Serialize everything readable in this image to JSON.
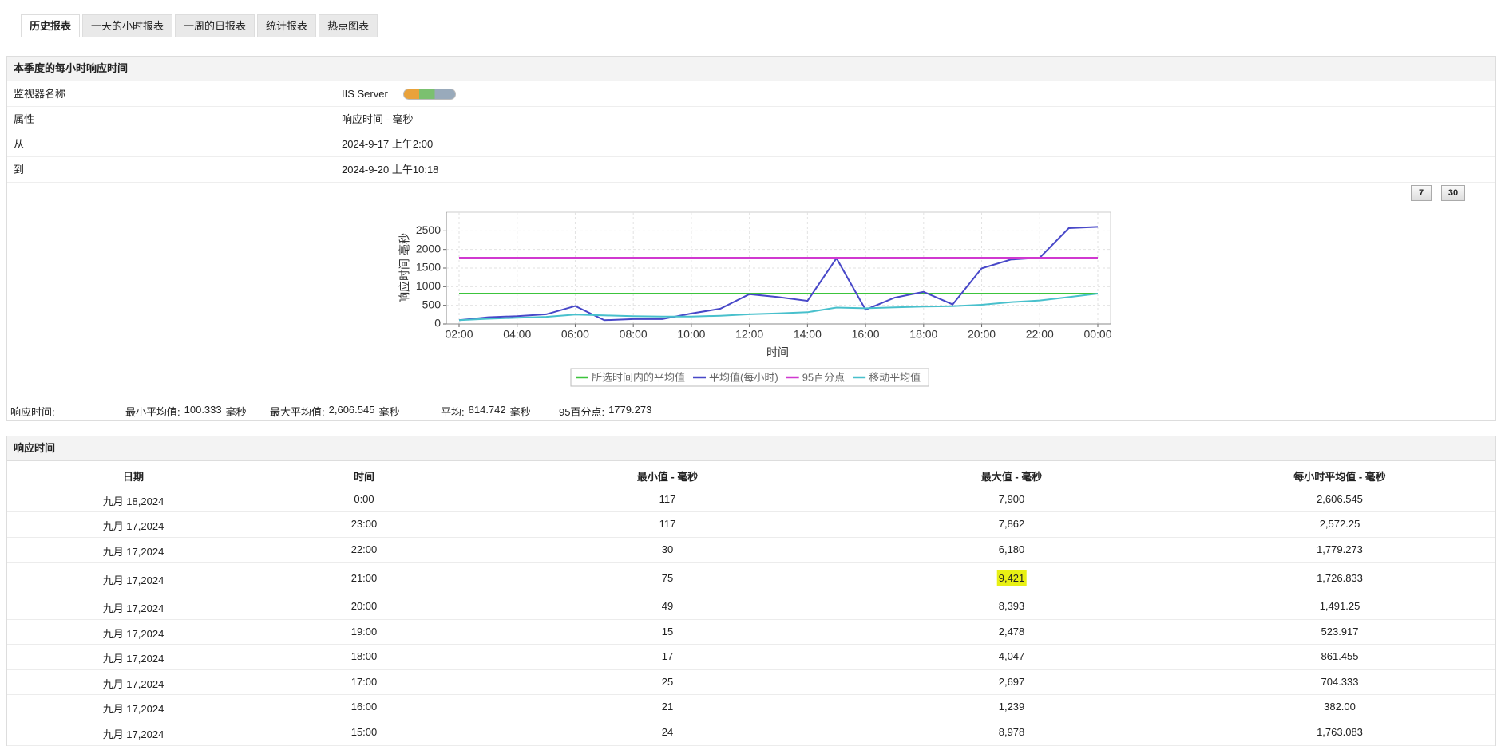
{
  "tabs": [
    "历史报表",
    "一天的小时报表",
    "一周的日报表",
    "统计报表",
    "热点图表"
  ],
  "summary": {
    "title": "本季度的每小时响应时间",
    "rows": [
      [
        "监视器名称",
        "IIS Server"
      ],
      [
        "属性",
        "响应时间 - 毫秒"
      ],
      [
        "从",
        "2024-9-17 上午2:00"
      ],
      [
        "到",
        "2024-9-20 上午10:18"
      ]
    ]
  },
  "period_buttons": [
    "7",
    "30"
  ],
  "chart_data": {
    "type": "line",
    "x_label": "时间",
    "y_label": "响应时间 毫秒",
    "categories": [
      "02:00",
      null,
      "04:00",
      null,
      "06:00",
      null,
      "08:00",
      null,
      "10:00",
      null,
      "12:00",
      null,
      "14:00",
      null,
      "16:00",
      null,
      "18:00",
      null,
      "20:00",
      null,
      "22:00",
      null,
      "00:00"
    ],
    "series": [
      {
        "name": "所选时间内的平均值",
        "color": "#3cc43c",
        "values": [
          814.742,
          814.742,
          814.742,
          814.742,
          814.742,
          814.742,
          814.742,
          814.742,
          814.742,
          814.742,
          814.742,
          814.742,
          814.742,
          814.742,
          814.742,
          814.742,
          814.742,
          814.742,
          814.742,
          814.742,
          814.742,
          814.742,
          814.742
        ]
      },
      {
        "name": "平均值(每小时)",
        "color": "#4848c8",
        "values": [
          100.333,
          180,
          210,
          260,
          480,
          100,
          130,
          130,
          280,
          410,
          800,
          720,
          620,
          1763.083,
          382,
          704.333,
          861.455,
          523.917,
          1491.25,
          1726.833,
          1779.273,
          2572.25,
          2606.545
        ]
      },
      {
        "name": "95百分点",
        "color": "#d038d0",
        "values": [
          1779.273,
          1779.273,
          1779.273,
          1779.273,
          1779.273,
          1779.273,
          1779.273,
          1779.273,
          1779.273,
          1779.273,
          1779.273,
          1779.273,
          1779.273,
          1779.273,
          1779.273,
          1779.273,
          1779.273,
          1779.273,
          1779.273,
          1779.273,
          1779.273,
          1779.273,
          1779.273
        ]
      },
      {
        "name": "移动平均值",
        "color": "#48c0cc",
        "values": [
          100,
          140,
          165,
          190,
          250,
          230,
          210,
          200,
          200,
          220,
          260,
          285,
          315,
          440,
          420,
          445,
          465,
          475,
          515,
          585,
          630,
          720,
          815
        ]
      }
    ],
    "ylim": [
      0,
      3000
    ],
    "yticks": [
      0,
      500,
      1000,
      1500,
      2000,
      2500
    ],
    "grid": true,
    "legend": "bottom"
  },
  "stats": {
    "label": "响应时间:",
    "items": [
      {
        "name": "最小平均值:",
        "value": "100.333",
        "unit": "毫秒"
      },
      {
        "name": "最大平均值:",
        "value": "2,606.545",
        "unit": "毫秒"
      },
      {
        "name": "平均:",
        "value": "814.742",
        "unit": "毫秒"
      },
      {
        "name": "95百分点:",
        "value": "1779.273"
      }
    ]
  },
  "table": {
    "title": "响应时间",
    "columns": [
      "日期",
      "时间",
      "最小值 - 毫秒",
      "最大值 - 毫秒",
      "每小时平均值 - 毫秒"
    ],
    "rows": [
      [
        "九月 18,2024",
        "0:00",
        "117",
        "7,900",
        "2,606.545"
      ],
      [
        "九月 17,2024",
        "23:00",
        "117",
        "7,862",
        "2,572.25"
      ],
      [
        "九月 17,2024",
        "22:00",
        "30",
        "6,180",
        "1,779.273"
      ],
      [
        "九月 17,2024",
        "21:00",
        "75",
        "9,421",
        "1,726.833"
      ],
      [
        "九月 17,2024",
        "20:00",
        "49",
        "8,393",
        "1,491.25"
      ],
      [
        "九月 17,2024",
        "19:00",
        "15",
        "2,478",
        "523.917"
      ],
      [
        "九月 17,2024",
        "18:00",
        "17",
        "4,047",
        "861.455"
      ],
      [
        "九月 17,2024",
        "17:00",
        "25",
        "2,697",
        "704.333"
      ],
      [
        "九月 17,2024",
        "16:00",
        "21",
        "1,239",
        "382.00"
      ],
      [
        "九月 17,2024",
        "15:00",
        "24",
        "8,978",
        "1,763.083"
      ]
    ],
    "highlight": {
      "row": 3,
      "column": 3,
      "color": "#e8f014"
    }
  }
}
